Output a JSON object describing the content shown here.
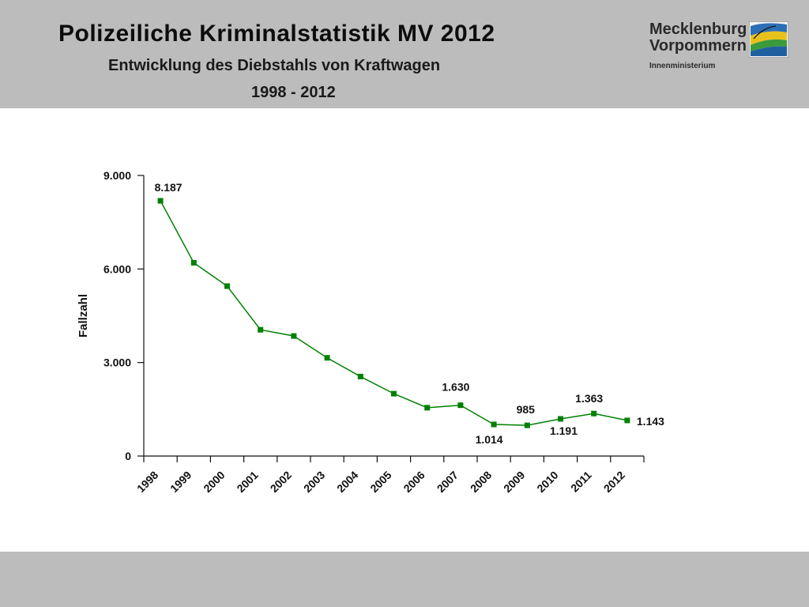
{
  "header": {
    "title": "Polizeiliche Kriminalstatistik MV 2012",
    "subtitle": "Entwicklung des Diebstahls von Kraftwagen",
    "period": "1998 - 2012"
  },
  "logo": {
    "line1": "Mecklenburg",
    "line2": "Vorpommern",
    "line3": "Innenministerium"
  },
  "colors": {
    "header_bg": "#bcbcbc",
    "series": "#008000"
  },
  "chart_data": {
    "type": "line",
    "ylabel": "Fallzahl",
    "xlabel": "",
    "ylim": [
      0,
      9000
    ],
    "yticks": [
      {
        "value": 0,
        "label": "0"
      },
      {
        "value": 3000,
        "label": "3.000"
      },
      {
        "value": 6000,
        "label": "6.000"
      },
      {
        "value": 9000,
        "label": "9.000"
      }
    ],
    "categories": [
      "1998",
      "1999",
      "2000",
      "2001",
      "2002",
      "2003",
      "2004",
      "2005",
      "2006",
      "2007",
      "2008",
      "2009",
      "2010",
      "2011",
      "2012"
    ],
    "values": [
      8187,
      6200,
      5450,
      4050,
      3850,
      3150,
      2550,
      2000,
      1550,
      1630,
      1014,
      985,
      1191,
      1363,
      1143
    ],
    "data_labels": [
      {
        "index": 0,
        "text": "8.187"
      },
      {
        "index": 9,
        "text": "1.630"
      },
      {
        "index": 10,
        "text": "1.014"
      },
      {
        "index": 11,
        "text": "985"
      },
      {
        "index": 12,
        "text": "1.191"
      },
      {
        "index": 13,
        "text": "1.363"
      },
      {
        "index": 14,
        "text": "1.143"
      }
    ],
    "grid": false,
    "legend": "none"
  }
}
